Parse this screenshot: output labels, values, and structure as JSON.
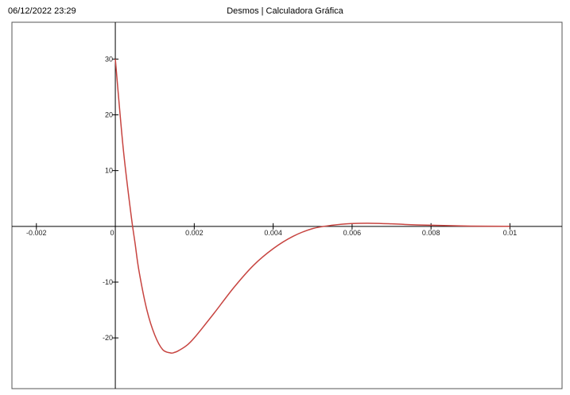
{
  "header": {
    "timestamp": "06/12/2022 23:29",
    "title": "Desmos | Calculadora Gráfica"
  },
  "colors": {
    "curve": "#c74440",
    "axis": "#000000",
    "frame": "#555555"
  },
  "chart_data": {
    "type": "line",
    "title": "",
    "xlabel": "",
    "ylabel": "",
    "grid": false,
    "xlim": [
      -0.00262,
      0.01132
    ],
    "ylim": [
      -29.1,
      36.6
    ],
    "x_ticks": [
      {
        "value": -0.002,
        "label": "-0.002"
      },
      {
        "value": 0,
        "label": "0"
      },
      {
        "value": 0.002,
        "label": "0.002"
      },
      {
        "value": 0.004,
        "label": "0.004"
      },
      {
        "value": 0.006,
        "label": "0.006"
      },
      {
        "value": 0.008,
        "label": "0.008"
      },
      {
        "value": 0.01,
        "label": "0.01"
      }
    ],
    "y_ticks": [
      {
        "value": 30,
        "label": "30"
      },
      {
        "value": 20,
        "label": "20"
      },
      {
        "value": 10,
        "label": "10"
      },
      {
        "value": -10,
        "label": "-10"
      },
      {
        "value": -20,
        "label": "-20"
      }
    ],
    "series": [
      {
        "x": [
          0,
          0.0002,
          0.0004,
          0.0005,
          0.0006,
          0.0008,
          0.001,
          0.0012,
          0.0014,
          0.0015,
          0.0016,
          0.0018,
          0.002,
          0.0025,
          0.003,
          0.0035,
          0.004,
          0.0045,
          0.005,
          0.0055,
          0.006,
          0.0065,
          0.007,
          0.0075,
          0.008,
          0.009,
          0.01
        ],
        "y": [
          30,
          14,
          2,
          -3,
          -8,
          -15,
          -19.5,
          -22.1,
          -22.7,
          -22.6,
          -22.3,
          -21.4,
          -20,
          -15.6,
          -11,
          -7,
          -4,
          -1.8,
          -0.4,
          0.2,
          0.5,
          0.55,
          0.45,
          0.3,
          0.2,
          0.05,
          0
        ]
      }
    ]
  }
}
